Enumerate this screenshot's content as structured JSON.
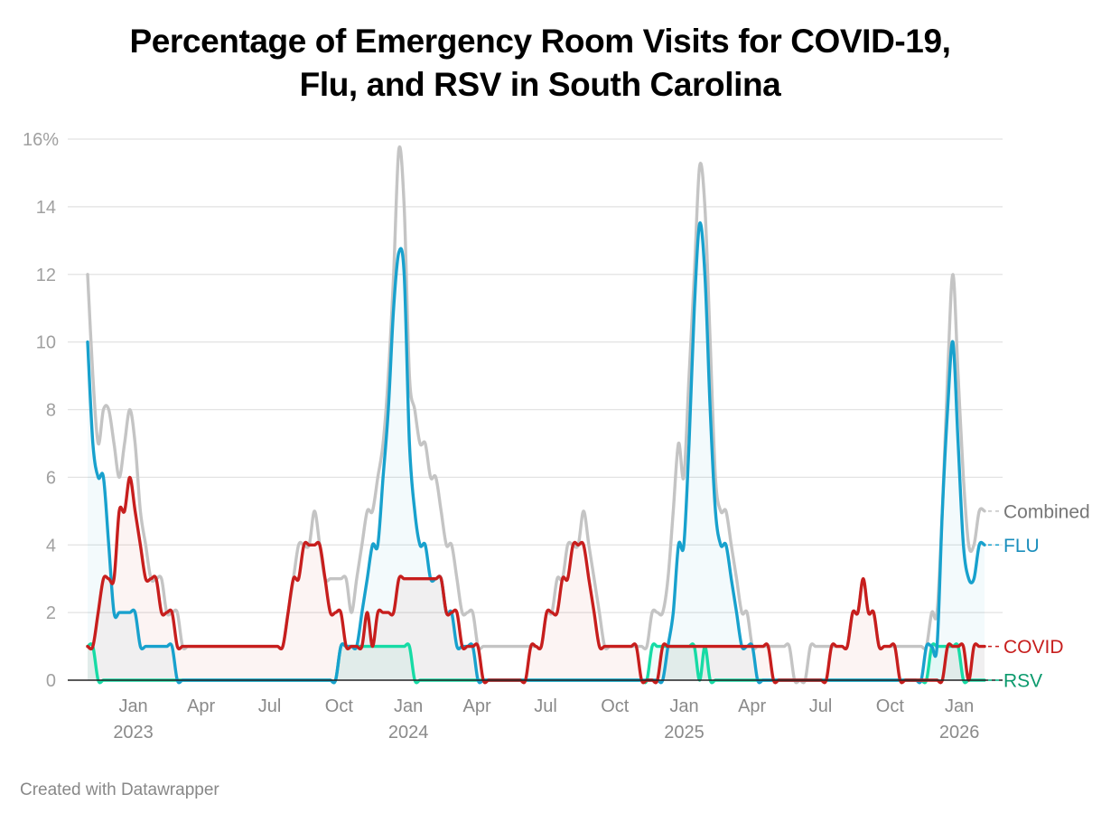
{
  "title_line1": "Percentage of Emergency Room Visits for COVID-19,",
  "title_line2": "Flu, and RSV in South Carolina",
  "footer": "Created with Datawrapper",
  "chart_data": {
    "type": "line",
    "title": "Percentage of Emergency Room Visits for COVID-19, Flu, and RSV in South Carolina",
    "xlabel": "",
    "ylabel": "",
    "ylim": [
      0,
      16
    ],
    "y_ticks": [
      {
        "value": 0,
        "label": "0"
      },
      {
        "value": 2,
        "label": "2"
      },
      {
        "value": 4,
        "label": "4"
      },
      {
        "value": 6,
        "label": "6"
      },
      {
        "value": 8,
        "label": "8"
      },
      {
        "value": 10,
        "label": "10"
      },
      {
        "value": 12,
        "label": "12"
      },
      {
        "value": 14,
        "label": "14"
      },
      {
        "value": 16,
        "label": "16%"
      }
    ],
    "x_ticks": [
      {
        "date": "2023-01-01",
        "label": "Jan",
        "year": "2023"
      },
      {
        "date": "2023-04-01",
        "label": "Apr"
      },
      {
        "date": "2023-07-01",
        "label": "Jul"
      },
      {
        "date": "2023-10-01",
        "label": "Oct"
      },
      {
        "date": "2024-01-01",
        "label": "Jan",
        "year": "2024"
      },
      {
        "date": "2024-04-01",
        "label": "Apr"
      },
      {
        "date": "2024-07-01",
        "label": "Jul"
      },
      {
        "date": "2024-10-01",
        "label": "Oct"
      },
      {
        "date": "2025-01-01",
        "label": "Jan",
        "year": "2025"
      },
      {
        "date": "2025-04-01",
        "label": "Apr"
      },
      {
        "date": "2025-07-01",
        "label": "Jul"
      },
      {
        "date": "2025-10-01",
        "label": "Oct"
      },
      {
        "date": "2026-01-01",
        "label": "Jan",
        "year": "2026"
      }
    ],
    "grid": true,
    "legend": "direct labels at right end of lines",
    "x": [
      "2022-11-05",
      "2022-11-12",
      "2022-11-19",
      "2022-11-26",
      "2022-12-03",
      "2022-12-10",
      "2022-12-17",
      "2022-12-24",
      "2022-12-31",
      "2023-01-07",
      "2023-01-14",
      "2023-01-21",
      "2023-01-28",
      "2023-02-04",
      "2023-02-11",
      "2023-02-18",
      "2023-02-25",
      "2023-03-04",
      "2023-03-11",
      "2023-03-18",
      "2023-03-25",
      "2023-04-01",
      "2023-04-08",
      "2023-04-15",
      "2023-04-22",
      "2023-04-29",
      "2023-05-06",
      "2023-05-13",
      "2023-05-20",
      "2023-05-27",
      "2023-06-03",
      "2023-06-10",
      "2023-06-17",
      "2023-06-24",
      "2023-07-01",
      "2023-07-08",
      "2023-07-15",
      "2023-07-22",
      "2023-07-29",
      "2023-08-05",
      "2023-08-12",
      "2023-08-19",
      "2023-08-26",
      "2023-09-02",
      "2023-09-09",
      "2023-09-16",
      "2023-09-23",
      "2023-09-30",
      "2023-10-07",
      "2023-10-14",
      "2023-10-21",
      "2023-10-28",
      "2023-11-04",
      "2023-11-11",
      "2023-11-18",
      "2023-11-25",
      "2023-12-02",
      "2023-12-09",
      "2023-12-16",
      "2023-12-23",
      "2023-12-30",
      "2024-01-06",
      "2024-01-13",
      "2024-01-20",
      "2024-01-27",
      "2024-02-03",
      "2024-02-10",
      "2024-02-17",
      "2024-02-24",
      "2024-03-02",
      "2024-03-09",
      "2024-03-16",
      "2024-03-23",
      "2024-03-30",
      "2024-04-06",
      "2024-04-13",
      "2024-04-20",
      "2024-04-27",
      "2024-05-04",
      "2024-05-11",
      "2024-05-18",
      "2024-05-25",
      "2024-06-01",
      "2024-06-08",
      "2024-06-15",
      "2024-06-22",
      "2024-06-29",
      "2024-07-06",
      "2024-07-13",
      "2024-07-20",
      "2024-07-27",
      "2024-08-03",
      "2024-08-10",
      "2024-08-17",
      "2024-08-24",
      "2024-08-31",
      "2024-09-07",
      "2024-09-14",
      "2024-09-21",
      "2024-09-28",
      "2024-10-05",
      "2024-10-12",
      "2024-10-19",
      "2024-10-26",
      "2024-11-02",
      "2024-11-09",
      "2024-11-16",
      "2024-11-23",
      "2024-11-30",
      "2024-12-07",
      "2024-12-14",
      "2024-12-21",
      "2024-12-28",
      "2025-01-04",
      "2025-01-11",
      "2025-01-18",
      "2025-01-25",
      "2025-02-01",
      "2025-02-08",
      "2025-02-15",
      "2025-02-22",
      "2025-03-01",
      "2025-03-08",
      "2025-03-15",
      "2025-03-22",
      "2025-03-29",
      "2025-04-05",
      "2025-04-12",
      "2025-04-19",
      "2025-04-26",
      "2025-05-03",
      "2025-05-10",
      "2025-05-17",
      "2025-05-24",
      "2025-05-31",
      "2025-06-07",
      "2025-06-14",
      "2025-06-21",
      "2025-06-28",
      "2025-07-05",
      "2025-07-12",
      "2025-07-19",
      "2025-07-26",
      "2025-08-02",
      "2025-08-09",
      "2025-08-16",
      "2025-08-23",
      "2025-08-30",
      "2025-09-06",
      "2025-09-13",
      "2025-09-20",
      "2025-09-27",
      "2025-10-04",
      "2025-10-11",
      "2025-10-18",
      "2025-10-25",
      "2025-11-01",
      "2025-11-08",
      "2025-11-15",
      "2025-11-22",
      "2025-11-29",
      "2025-12-06",
      "2025-12-13",
      "2025-12-20",
      "2025-12-27",
      "2026-01-03",
      "2026-01-10",
      "2026-01-17",
      "2026-01-24",
      "2026-01-31",
      "2026-02-07"
    ],
    "series": [
      {
        "name": "Combined",
        "color": "#c4c4c4",
        "label_color": "#777777",
        "fill": "none",
        "values": [
          12,
          9,
          7,
          8,
          8,
          7,
          6,
          7,
          8,
          7,
          5,
          4,
          3,
          3,
          3,
          2,
          2,
          2,
          1,
          1,
          1,
          1,
          1,
          1,
          1,
          1,
          1,
          1,
          1,
          1,
          1,
          1,
          1,
          1,
          1,
          1,
          1,
          1,
          2,
          3,
          4,
          4,
          4,
          5,
          4,
          3,
          3,
          3,
          3,
          3,
          2,
          3,
          4,
          5,
          5,
          6,
          7,
          9,
          12,
          15.7,
          14,
          9,
          8,
          7,
          7,
          6,
          6,
          5,
          4,
          4,
          3,
          2,
          2,
          2,
          1,
          1,
          1,
          1,
          1,
          1,
          1,
          1,
          1,
          1,
          1,
          1,
          1,
          2,
          2,
          3,
          3,
          4,
          4,
          4,
          5,
          4,
          3,
          2,
          1,
          1,
          1,
          1,
          1,
          1,
          1,
          1,
          1,
          2,
          2,
          2,
          3,
          5,
          7,
          6,
          9,
          12,
          15.2,
          14,
          10,
          6,
          5,
          5,
          4,
          3,
          2,
          2,
          1,
          1,
          1,
          1,
          1,
          1,
          1,
          1,
          0,
          0,
          0,
          1,
          1,
          1,
          1,
          1,
          1,
          1,
          1,
          2,
          2,
          3,
          2,
          2,
          1,
          1,
          1,
          1,
          1,
          1,
          1,
          1,
          1,
          1,
          2,
          2,
          5,
          9,
          12,
          9,
          6,
          4,
          4,
          5,
          5
        ]
      },
      {
        "name": "RSV",
        "color": "#17dba5",
        "label_color": "#0b9a6d",
        "fill": "rgba(23,219,165,0.07)",
        "values": [
          1,
          1,
          0,
          0,
          0,
          0,
          0,
          0,
          0,
          0,
          0,
          0,
          0,
          0,
          0,
          0,
          0,
          0,
          0,
          0,
          0,
          0,
          0,
          0,
          0,
          0,
          0,
          0,
          0,
          0,
          0,
          0,
          0,
          0,
          0,
          0,
          0,
          0,
          0,
          0,
          0,
          0,
          0,
          0,
          0,
          0,
          0,
          0,
          1,
          1,
          1,
          1,
          1,
          1,
          1,
          1,
          1,
          1,
          1,
          1,
          1,
          1,
          0,
          0,
          0,
          0,
          0,
          0,
          0,
          0,
          0,
          0,
          0,
          0,
          0,
          0,
          0,
          0,
          0,
          0,
          0,
          0,
          0,
          0,
          0,
          0,
          0,
          0,
          0,
          0,
          0,
          0,
          0,
          0,
          0,
          0,
          0,
          0,
          0,
          0,
          0,
          0,
          0,
          0,
          0,
          0,
          0,
          1,
          1,
          1,
          1,
          1,
          1,
          1,
          1,
          1,
          0,
          1,
          0,
          0,
          0,
          0,
          0,
          0,
          0,
          0,
          0,
          0,
          0,
          0,
          0,
          0,
          0,
          0,
          0,
          0,
          0,
          0,
          0,
          0,
          0,
          0,
          0,
          0,
          0,
          0,
          0,
          0,
          0,
          0,
          0,
          0,
          0,
          0,
          0,
          0,
          0,
          0,
          0,
          0,
          1,
          1,
          1,
          1,
          1,
          1,
          0,
          0,
          0,
          0,
          0
        ]
      },
      {
        "name": "FLU",
        "color": "#18a1cd",
        "label_color": "#1a8ebc",
        "fill": "rgba(24,161,205,0.05)",
        "values": [
          10,
          7,
          6,
          6,
          4,
          2,
          2,
          2,
          2,
          2,
          1,
          1,
          1,
          1,
          1,
          1,
          1,
          0,
          0,
          0,
          0,
          0,
          0,
          0,
          0,
          0,
          0,
          0,
          0,
          0,
          0,
          0,
          0,
          0,
          0,
          0,
          0,
          0,
          0,
          0,
          0,
          0,
          0,
          0,
          0,
          0,
          0,
          0,
          1,
          1,
          1,
          1,
          2,
          3,
          4,
          4,
          6,
          8,
          11,
          12.65,
          12,
          7,
          5,
          4,
          4,
          3,
          3,
          3,
          2,
          2,
          1,
          1,
          1,
          1,
          0,
          0,
          0,
          0,
          0,
          0,
          0,
          0,
          0,
          0,
          0,
          0,
          0,
          0,
          0,
          0,
          0,
          0,
          0,
          0,
          0,
          0,
          0,
          0,
          0,
          0,
          0,
          0,
          0,
          0,
          0,
          0,
          0,
          0,
          0,
          0,
          1,
          2,
          4,
          4,
          7,
          11,
          13.5,
          12,
          8,
          5,
          4,
          4,
          3,
          2,
          1,
          1,
          1,
          0,
          0,
          0,
          0,
          0,
          0,
          0,
          0,
          0,
          0,
          0,
          0,
          0,
          0,
          0,
          0,
          0,
          0,
          0,
          0,
          0,
          0,
          0,
          0,
          0,
          0,
          0,
          0,
          0,
          0,
          0,
          0,
          1,
          1,
          1,
          5,
          8,
          10,
          7,
          4,
          3,
          3,
          4,
          4
        ]
      },
      {
        "name": "COVID",
        "color": "#c71e1d",
        "label_color": "#c71e1d",
        "fill": "rgba(199,30,29,0.05)",
        "values": [
          1,
          1,
          2,
          3,
          3,
          3,
          5,
          5,
          6,
          5,
          4,
          3,
          3,
          3,
          2,
          2,
          2,
          1,
          1,
          1,
          1,
          1,
          1,
          1,
          1,
          1,
          1,
          1,
          1,
          1,
          1,
          1,
          1,
          1,
          1,
          1,
          1,
          1,
          2,
          3,
          3,
          4,
          4,
          4,
          4,
          3,
          2,
          2,
          2,
          1,
          1,
          1,
          1,
          2,
          1,
          2,
          2,
          2,
          2,
          3,
          3,
          3,
          3,
          3,
          3,
          3,
          3,
          3,
          2,
          2,
          2,
          1,
          1,
          1,
          1,
          0,
          0,
          0,
          0,
          0,
          0,
          0,
          0,
          0,
          1,
          1,
          1,
          2,
          2,
          2,
          3,
          3,
          4,
          4,
          4,
          3,
          2,
          1,
          1,
          1,
          1,
          1,
          1,
          1,
          1,
          0,
          0,
          0,
          0,
          1,
          1,
          1,
          1,
          1,
          1,
          1,
          1,
          1,
          1,
          1,
          1,
          1,
          1,
          1,
          1,
          1,
          1,
          1,
          1,
          1,
          0,
          0,
          0,
          0,
          0,
          0,
          0,
          0,
          0,
          0,
          0,
          1,
          1,
          1,
          1,
          2,
          2,
          3,
          2,
          2,
          1,
          1,
          1,
          1,
          0,
          0,
          0,
          0,
          0,
          0,
          0,
          0,
          0,
          1,
          1,
          1,
          1,
          0,
          1,
          1,
          1
        ]
      }
    ]
  }
}
